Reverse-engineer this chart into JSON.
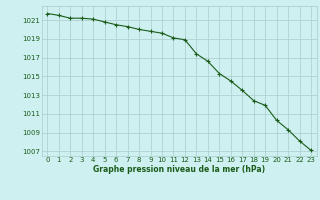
{
  "x": [
    0,
    1,
    2,
    3,
    4,
    5,
    6,
    7,
    8,
    9,
    10,
    11,
    12,
    13,
    14,
    15,
    16,
    17,
    18,
    19,
    20,
    21,
    22,
    23
  ],
  "y": [
    1021.7,
    1021.5,
    1021.2,
    1021.2,
    1021.1,
    1020.8,
    1020.5,
    1020.3,
    1020.0,
    1019.8,
    1019.6,
    1019.1,
    1018.9,
    1017.4,
    1016.6,
    1015.3,
    1014.5,
    1013.5,
    1012.4,
    1011.9,
    1010.3,
    1009.3,
    1008.1,
    1007.1
  ],
  "line_color": "#1a5c1a",
  "marker": "+",
  "marker_size": 3,
  "marker_edge_width": 0.8,
  "line_width": 0.8,
  "bg_color": "#cff0f0",
  "grid_color": "#aacccc",
  "xlabel": "Graphe pression niveau de la mer (hPa)",
  "xlabel_color": "#1a5c1a",
  "tick_color": "#1a5c1a",
  "ylim": [
    1006.5,
    1022.5
  ],
  "xlim": [
    -0.5,
    23.5
  ],
  "yticks": [
    1007,
    1009,
    1011,
    1013,
    1015,
    1017,
    1019,
    1021
  ],
  "xticks": [
    0,
    1,
    2,
    3,
    4,
    5,
    6,
    7,
    8,
    9,
    10,
    11,
    12,
    13,
    14,
    15,
    16,
    17,
    18,
    19,
    20,
    21,
    22,
    23
  ],
  "tick_fontsize": 5.0,
  "xlabel_fontsize": 5.5
}
